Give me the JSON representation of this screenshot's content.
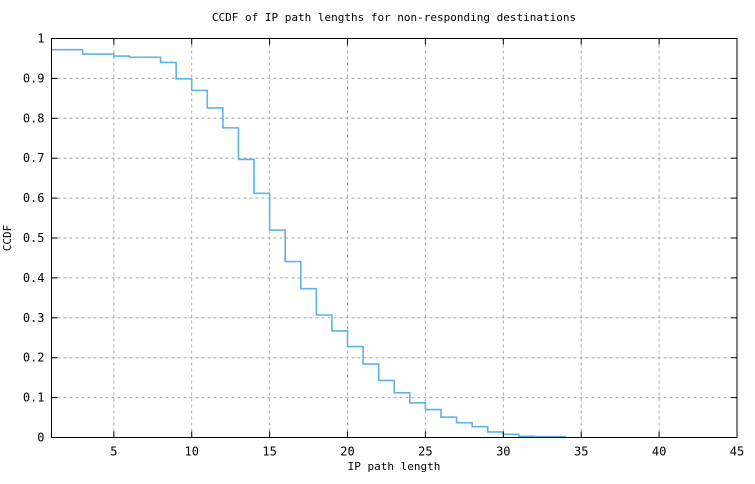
{
  "chart_data": {
    "type": "line",
    "step_mode": "post",
    "title": "CCDF of IP path lengths for non-responding destinations",
    "xlabel": "IP path length",
    "ylabel": "CCDF",
    "xlim": [
      1,
      45
    ],
    "ylim": [
      0,
      1
    ],
    "grid": true,
    "legend_position": "none",
    "x_ticks": [
      5,
      10,
      15,
      20,
      25,
      30,
      35,
      40,
      45
    ],
    "x_tick_labels": [
      "5",
      "10",
      "15",
      "20",
      "25",
      "30",
      "35",
      "40",
      "45"
    ],
    "y_ticks": [
      0,
      0.1,
      0.2,
      0.3,
      0.4,
      0.5,
      0.6,
      0.7,
      0.8,
      0.9,
      1
    ],
    "y_tick_labels": [
      "0",
      "0.1",
      "0.2",
      "0.3",
      "0.4",
      "0.5",
      "0.6",
      "0.7",
      "0.8",
      "0.9",
      "1"
    ],
    "series": [
      {
        "name": "ccdf-of-ip-path-length",
        "x": [
          1,
          2,
          3,
          4,
          5,
          6,
          7,
          8,
          9,
          10,
          11,
          12,
          13,
          14,
          15,
          16,
          17,
          18,
          19,
          20,
          21,
          22,
          23,
          24,
          25,
          26,
          27,
          28,
          29,
          30,
          31,
          32,
          33,
          34
        ],
        "y": [
          0.972,
          0.972,
          0.961,
          0.961,
          0.956,
          0.953,
          0.953,
          0.94,
          0.899,
          0.87,
          0.826,
          0.776,
          0.697,
          0.612,
          0.52,
          0.441,
          0.373,
          0.307,
          0.267,
          0.228,
          0.184,
          0.143,
          0.112,
          0.087,
          0.07,
          0.051,
          0.037,
          0.027,
          0.014,
          0.008,
          0.003,
          0.002,
          0.002,
          0
        ]
      }
    ],
    "colors": {
      "line": "#5fb2e6",
      "grid": "#aaaaaa",
      "axis": "#000000",
      "text": "#000000",
      "background": "#ffffff"
    }
  }
}
